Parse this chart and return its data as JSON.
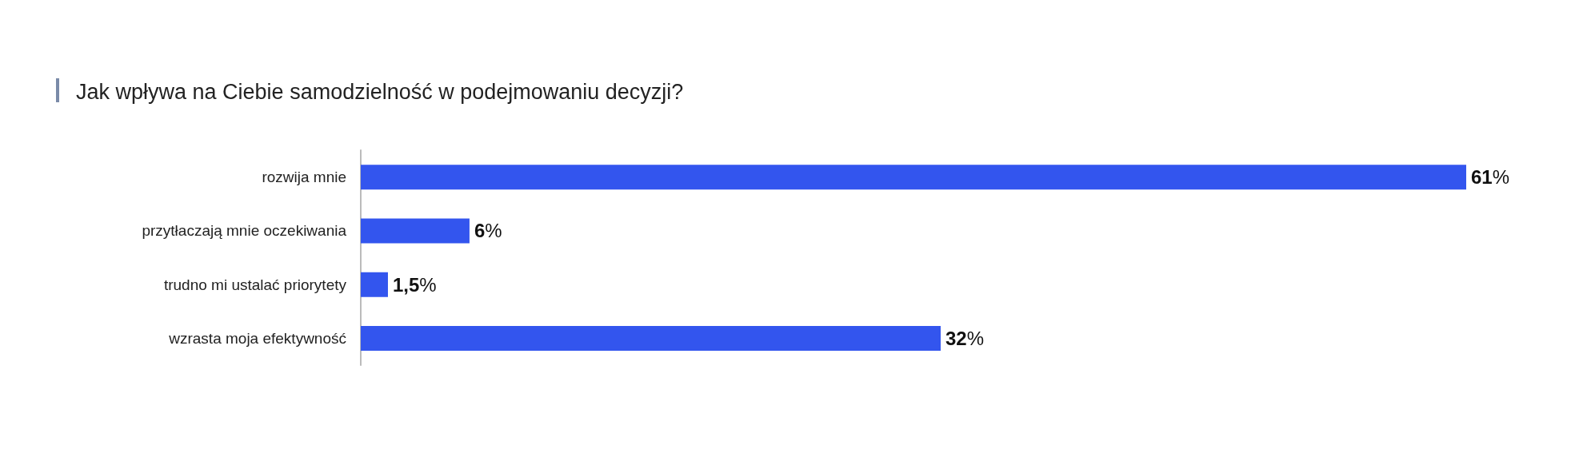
{
  "chart_data": {
    "type": "bar",
    "orientation": "horizontal",
    "title": "Jak wpływa na Ciebie samodzielność w podejmowaniu decyzji?",
    "categories": [
      "rozwija mnie",
      "przytłaczają mnie oczekiwania",
      "trudno mi ustalać priorytety",
      "wzrasta moja efektywność"
    ],
    "values": [
      61,
      6,
      1.5,
      32
    ],
    "value_labels": [
      "61%",
      "6%",
      "1,5%",
      "32%"
    ],
    "color": "#3355ee"
  }
}
